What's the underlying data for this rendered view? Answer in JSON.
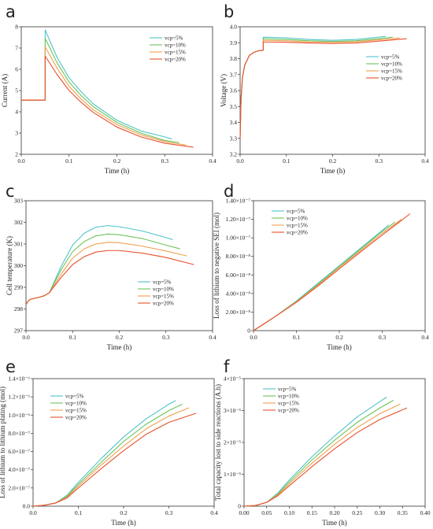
{
  "figure": {
    "panels": [
      "a",
      "b",
      "c",
      "d",
      "e",
      "f"
    ]
  },
  "colors": {
    "vcp5": "#4fc3c8",
    "vcp10": "#6cc45a",
    "vcp15": "#f0a050",
    "vcp20": "#e8502c",
    "axis": "#333333"
  },
  "chart_data": [
    {
      "id": "a",
      "type": "line",
      "xlabel": "Time (h)",
      "ylabel": "Current (A)",
      "xlim": [
        0,
        0.4
      ],
      "ylim": [
        2,
        8
      ],
      "xticks": [
        0.0,
        0.1,
        0.2,
        0.3,
        0.4
      ],
      "xtick_labels": [
        "0.0",
        "0.1",
        "0.2",
        "0.3",
        "0.4"
      ],
      "yticks": [
        2,
        3,
        4,
        5,
        6,
        7,
        8
      ],
      "ytick_labels": [
        "2",
        "3",
        "4",
        "5",
        "6",
        "7",
        "8"
      ],
      "legend_position": "top-right",
      "series": [
        {
          "name": "vcp=5%",
          "x": [
            0,
            0.05,
            0.05,
            0.075,
            0.1,
            0.125,
            0.15,
            0.2,
            0.25,
            0.3,
            0.315
          ],
          "y": [
            4.55,
            4.55,
            7.85,
            6.55,
            5.6,
            4.95,
            4.38,
            3.6,
            3.1,
            2.82,
            2.72
          ]
        },
        {
          "name": "vcp=10%",
          "x": [
            0,
            0.05,
            0.05,
            0.075,
            0.1,
            0.125,
            0.15,
            0.2,
            0.25,
            0.3,
            0.33
          ],
          "y": [
            4.55,
            4.55,
            7.45,
            6.3,
            5.4,
            4.77,
            4.25,
            3.5,
            3.0,
            2.65,
            2.55
          ]
        },
        {
          "name": "vcp=15%",
          "x": [
            0,
            0.05,
            0.05,
            0.075,
            0.1,
            0.125,
            0.15,
            0.2,
            0.25,
            0.3,
            0.345
          ],
          "y": [
            4.55,
            4.55,
            7.05,
            6.05,
            5.2,
            4.6,
            4.1,
            3.4,
            2.92,
            2.6,
            2.43
          ]
        },
        {
          "name": "vcp=20%",
          "x": [
            0,
            0.05,
            0.05,
            0.075,
            0.1,
            0.125,
            0.15,
            0.2,
            0.25,
            0.3,
            0.36
          ],
          "y": [
            4.55,
            4.55,
            6.62,
            5.75,
            5.0,
            4.45,
            3.98,
            3.28,
            2.82,
            2.52,
            2.33
          ]
        }
      ]
    },
    {
      "id": "b",
      "type": "line",
      "xlabel": "Time (h)",
      "ylabel": "Voltage (V)",
      "xlim": [
        0,
        0.4
      ],
      "ylim": [
        3.2,
        4.0
      ],
      "xticks": [
        0.0,
        0.1,
        0.2,
        0.3,
        0.4
      ],
      "xtick_labels": [
        "0.0",
        "0.1",
        "0.2",
        "0.3",
        "0.4"
      ],
      "yticks": [
        3.2,
        3.3,
        3.4,
        3.5,
        3.6,
        3.7,
        3.8,
        3.9,
        4.0
      ],
      "ytick_labels": [
        "3.2",
        "3.3",
        "3.4",
        "3.5",
        "3.6",
        "3.7",
        "3.8",
        "3.9",
        "4.0"
      ],
      "legend_position": "center-right",
      "series": [
        {
          "name": "vcp=5%",
          "x": [
            0,
            0.002,
            0.005,
            0.01,
            0.02,
            0.03,
            0.04,
            0.05,
            0.05,
            0.1,
            0.15,
            0.2,
            0.25,
            0.3,
            0.315
          ],
          "y": [
            3.3,
            3.55,
            3.68,
            3.76,
            3.82,
            3.84,
            3.85,
            3.852,
            3.935,
            3.93,
            3.92,
            3.915,
            3.92,
            3.935,
            3.94
          ]
        },
        {
          "name": "vcp=10%",
          "x": [
            0,
            0.002,
            0.005,
            0.01,
            0.02,
            0.03,
            0.04,
            0.05,
            0.05,
            0.1,
            0.15,
            0.2,
            0.25,
            0.3,
            0.33
          ],
          "y": [
            3.3,
            3.55,
            3.68,
            3.76,
            3.82,
            3.84,
            3.85,
            3.852,
            3.925,
            3.92,
            3.912,
            3.908,
            3.912,
            3.925,
            3.935
          ]
        },
        {
          "name": "vcp=15%",
          "x": [
            0,
            0.002,
            0.005,
            0.01,
            0.02,
            0.03,
            0.04,
            0.05,
            0.05,
            0.1,
            0.15,
            0.2,
            0.25,
            0.3,
            0.345
          ],
          "y": [
            3.3,
            3.55,
            3.68,
            3.76,
            3.82,
            3.84,
            3.85,
            3.852,
            3.915,
            3.912,
            3.905,
            3.902,
            3.906,
            3.918,
            3.93
          ]
        },
        {
          "name": "vcp=20%",
          "x": [
            0,
            0.002,
            0.005,
            0.01,
            0.02,
            0.03,
            0.04,
            0.05,
            0.05,
            0.1,
            0.15,
            0.2,
            0.25,
            0.3,
            0.36
          ],
          "y": [
            3.3,
            3.55,
            3.68,
            3.76,
            3.82,
            3.84,
            3.85,
            3.852,
            3.905,
            3.903,
            3.898,
            3.895,
            3.898,
            3.91,
            3.925
          ]
        }
      ]
    },
    {
      "id": "c",
      "type": "line",
      "xlabel": "Time (h)",
      "ylabel": "Cell temperature (K)",
      "xlim": [
        0,
        0.4
      ],
      "ylim": [
        297,
        303
      ],
      "xticks": [
        0.0,
        0.1,
        0.2,
        0.3,
        0.4
      ],
      "xtick_labels": [
        "0.0",
        "0.1",
        "0.2",
        "0.3",
        "0.4"
      ],
      "yticks": [
        297,
        298,
        299,
        300,
        301,
        302,
        303
      ],
      "ytick_labels": [
        "297",
        "298",
        "299",
        "300",
        "301",
        "302",
        "303"
      ],
      "legend_position": "bottom-right",
      "series": [
        {
          "name": "vcp=5%",
          "x": [
            0,
            0.005,
            0.01,
            0.02,
            0.03,
            0.04,
            0.05,
            0.075,
            0.1,
            0.125,
            0.15,
            0.175,
            0.2,
            0.25,
            0.3,
            0.315
          ],
          "y": [
            298.2,
            298.38,
            298.45,
            298.5,
            298.55,
            298.62,
            298.75,
            299.95,
            300.95,
            301.5,
            301.78,
            301.85,
            301.8,
            301.6,
            301.3,
            301.2
          ]
        },
        {
          "name": "vcp=10%",
          "x": [
            0,
            0.005,
            0.01,
            0.02,
            0.03,
            0.04,
            0.05,
            0.075,
            0.1,
            0.125,
            0.15,
            0.175,
            0.2,
            0.25,
            0.3,
            0.33
          ],
          "y": [
            298.2,
            298.38,
            298.45,
            298.5,
            298.55,
            298.62,
            298.75,
            299.8,
            300.65,
            301.12,
            301.38,
            301.46,
            301.43,
            301.25,
            300.95,
            300.78
          ]
        },
        {
          "name": "vcp=15%",
          "x": [
            0,
            0.005,
            0.01,
            0.02,
            0.03,
            0.04,
            0.05,
            0.075,
            0.1,
            0.125,
            0.15,
            0.175,
            0.2,
            0.25,
            0.3,
            0.345
          ],
          "y": [
            298.2,
            298.38,
            298.45,
            298.5,
            298.55,
            298.62,
            298.75,
            299.6,
            300.35,
            300.78,
            301.0,
            301.08,
            301.06,
            300.9,
            300.68,
            300.45
          ]
        },
        {
          "name": "vcp=20%",
          "x": [
            0,
            0.005,
            0.01,
            0.02,
            0.03,
            0.04,
            0.05,
            0.075,
            0.1,
            0.125,
            0.15,
            0.175,
            0.2,
            0.25,
            0.3,
            0.36
          ],
          "y": [
            298.2,
            298.38,
            298.45,
            298.5,
            298.55,
            298.62,
            298.75,
            299.45,
            300.05,
            300.42,
            300.63,
            300.7,
            300.7,
            300.58,
            300.38,
            300.05
          ]
        }
      ]
    },
    {
      "id": "d",
      "type": "line",
      "xlabel": "Time (h)",
      "ylabel": "Loss of lithium to negative SEI (mol)",
      "xlim": [
        0,
        0.4
      ],
      "ylim": [
        0,
        1.4e-07
      ],
      "xticks": [
        0.0,
        0.1,
        0.2,
        0.3,
        0.4
      ],
      "xtick_labels": [
        "0.0",
        "0.1",
        "0.2",
        "0.3",
        "0.4"
      ],
      "yticks": [
        0,
        2e-08,
        4e-08,
        6e-08,
        8e-08,
        1e-07,
        1.2e-07,
        1.4e-07
      ],
      "ytick_labels": [
        "0",
        "2.00×10⁻⁸",
        "4.00×10⁻⁸",
        "6.00×10⁻⁸",
        "8.00×10⁻⁸",
        "1.00×10⁻⁷",
        "1.20×10⁻⁷",
        "1.40×10⁻⁷"
      ],
      "legend_position": "top-left",
      "series": [
        {
          "name": "vcp=5%",
          "x": [
            0,
            0.05,
            0.1,
            0.15,
            0.2,
            0.25,
            0.3,
            0.315
          ],
          "y": [
            0,
            1.5e-08,
            3.2e-08,
            5.1e-08,
            7e-08,
            8.9e-08,
            1.08e-07,
            1.14e-07
          ]
        },
        {
          "name": "vcp=10%",
          "x": [
            0,
            0.05,
            0.1,
            0.15,
            0.2,
            0.25,
            0.3,
            0.33
          ],
          "y": [
            0,
            1.5e-08,
            3.15e-08,
            5e-08,
            6.9e-08,
            8.8e-08,
            1.07e-07,
            1.17e-07
          ]
        },
        {
          "name": "vcp=15%",
          "x": [
            0,
            0.05,
            0.1,
            0.15,
            0.2,
            0.25,
            0.3,
            0.345
          ],
          "y": [
            0,
            1.5e-08,
            3.1e-08,
            4.9e-08,
            6.8e-08,
            8.65e-08,
            1.05e-07,
            1.2e-07
          ]
        },
        {
          "name": "vcp=20%",
          "x": [
            0,
            0.05,
            0.1,
            0.15,
            0.2,
            0.25,
            0.3,
            0.365
          ],
          "y": [
            0,
            1.5e-08,
            3.05e-08,
            4.8e-08,
            6.65e-08,
            8.5e-08,
            1.03e-07,
            1.26e-07
          ]
        }
      ]
    },
    {
      "id": "e",
      "type": "line",
      "xlabel": "Time (h)",
      "ylabel": "Loss of lithium to  lithium plating (mol)",
      "xlim": [
        0,
        0.4
      ],
      "ylim": [
        0,
        1.4e-06
      ],
      "xticks": [
        0.0,
        0.1,
        0.2,
        0.3,
        0.4
      ],
      "xtick_labels": [
        "0.0",
        "0.1",
        "0.2",
        "0.3",
        "0.4"
      ],
      "yticks": [
        0,
        2e-07,
        4e-07,
        6e-07,
        8e-07,
        1e-06,
        1.2e-06,
        1.4e-06
      ],
      "ytick_labels": [
        "0.0",
        "2.0×10⁻⁷",
        "4.0×10⁻⁷",
        "6.0×10⁻⁷",
        "8.0×10⁻⁷",
        "1.0×10⁻⁶",
        "1.2×10⁻⁶",
        "1.4×10⁻⁶"
      ],
      "legend_position": "top-left",
      "series": [
        {
          "name": "vcp=5%",
          "x": [
            0,
            0.025,
            0.05,
            0.075,
            0.1,
            0.15,
            0.2,
            0.25,
            0.3,
            0.315
          ],
          "y": [
            0,
            1e-08,
            3.5e-08,
            1.2e-07,
            2.6e-07,
            5.2e-07,
            7.6e-07,
            9.6e-07,
            1.12e-06,
            1.16e-06
          ]
        },
        {
          "name": "vcp=10%",
          "x": [
            0,
            0.025,
            0.05,
            0.075,
            0.1,
            0.15,
            0.2,
            0.25,
            0.3,
            0.33
          ],
          "y": [
            0,
            1e-08,
            3.5e-08,
            1.1e-07,
            2.4e-07,
            4.8e-07,
            7.1e-07,
            9e-07,
            1.05e-06,
            1.12e-06
          ]
        },
        {
          "name": "vcp=15%",
          "x": [
            0,
            0.025,
            0.05,
            0.075,
            0.1,
            0.15,
            0.2,
            0.25,
            0.3,
            0.345
          ],
          "y": [
            0,
            1e-08,
            3.5e-08,
            1e-07,
            2.2e-07,
            4.5e-07,
            6.6e-07,
            8.5e-07,
            9.9e-07,
            1.08e-06
          ]
        },
        {
          "name": "vcp=20%",
          "x": [
            0,
            0.025,
            0.05,
            0.075,
            0.1,
            0.15,
            0.2,
            0.25,
            0.3,
            0.36
          ],
          "y": [
            0,
            1e-08,
            3.5e-08,
            9e-08,
            2e-07,
            4.1e-07,
            6.1e-07,
            7.9e-07,
            9.2e-07,
            1.02e-06
          ]
        }
      ]
    },
    {
      "id": "f",
      "type": "line",
      "xlabel": "Time (h)",
      "ylabel": "Total capacity lost to side reactions (A.h)",
      "xlim": [
        0,
        0.4
      ],
      "ylim": [
        0,
        4e-05
      ],
      "xticks": [
        0,
        0.05,
        0.1,
        0.15,
        0.2,
        0.25,
        0.3,
        0.35,
        0.4
      ],
      "xtick_labels": [
        "0.00",
        "0.05",
        "0.10",
        "0.15",
        "0.20",
        "0.25",
        "0.30",
        "0.35",
        "0.40"
      ],
      "yticks": [
        0,
        1e-05,
        2e-05,
        3e-05,
        4e-05
      ],
      "ytick_labels": [
        "0",
        "1×10⁻⁵",
        "2×10⁻⁵",
        "3×10⁻⁵",
        "4×10⁻⁵"
      ],
      "legend_position": "top-left",
      "series": [
        {
          "name": "vcp=5%",
          "x": [
            0,
            0.025,
            0.05,
            0.075,
            0.1,
            0.15,
            0.2,
            0.25,
            0.3,
            0.315
          ],
          "y": [
            0,
            2e-07,
            1.2e-06,
            4.2e-06,
            8.2e-06,
            1.55e-05,
            2.2e-05,
            2.8e-05,
            3.28e-05,
            3.42e-05
          ]
        },
        {
          "name": "vcp=10%",
          "x": [
            0,
            0.025,
            0.05,
            0.075,
            0.1,
            0.15,
            0.2,
            0.25,
            0.3,
            0.33
          ],
          "y": [
            0,
            2e-07,
            1.2e-06,
            3.9e-06,
            7.6e-06,
            1.45e-05,
            2.07e-05,
            2.63e-05,
            3.08e-05,
            3.32e-05
          ]
        },
        {
          "name": "vcp=15%",
          "x": [
            0,
            0.025,
            0.05,
            0.075,
            0.1,
            0.15,
            0.2,
            0.25,
            0.3,
            0.345
          ],
          "y": [
            0,
            2e-07,
            1.2e-06,
            3.6e-06,
            7e-06,
            1.35e-05,
            1.94e-05,
            2.47e-05,
            2.9e-05,
            3.2e-05
          ]
        },
        {
          "name": "vcp=20%",
          "x": [
            0,
            0.025,
            0.05,
            0.075,
            0.1,
            0.15,
            0.2,
            0.25,
            0.3,
            0.36
          ],
          "y": [
            0,
            2e-07,
            1.2e-06,
            3.3e-06,
            6.4e-06,
            1.24e-05,
            1.8e-05,
            2.31e-05,
            2.72e-05,
            3.08e-05
          ]
        }
      ]
    }
  ]
}
